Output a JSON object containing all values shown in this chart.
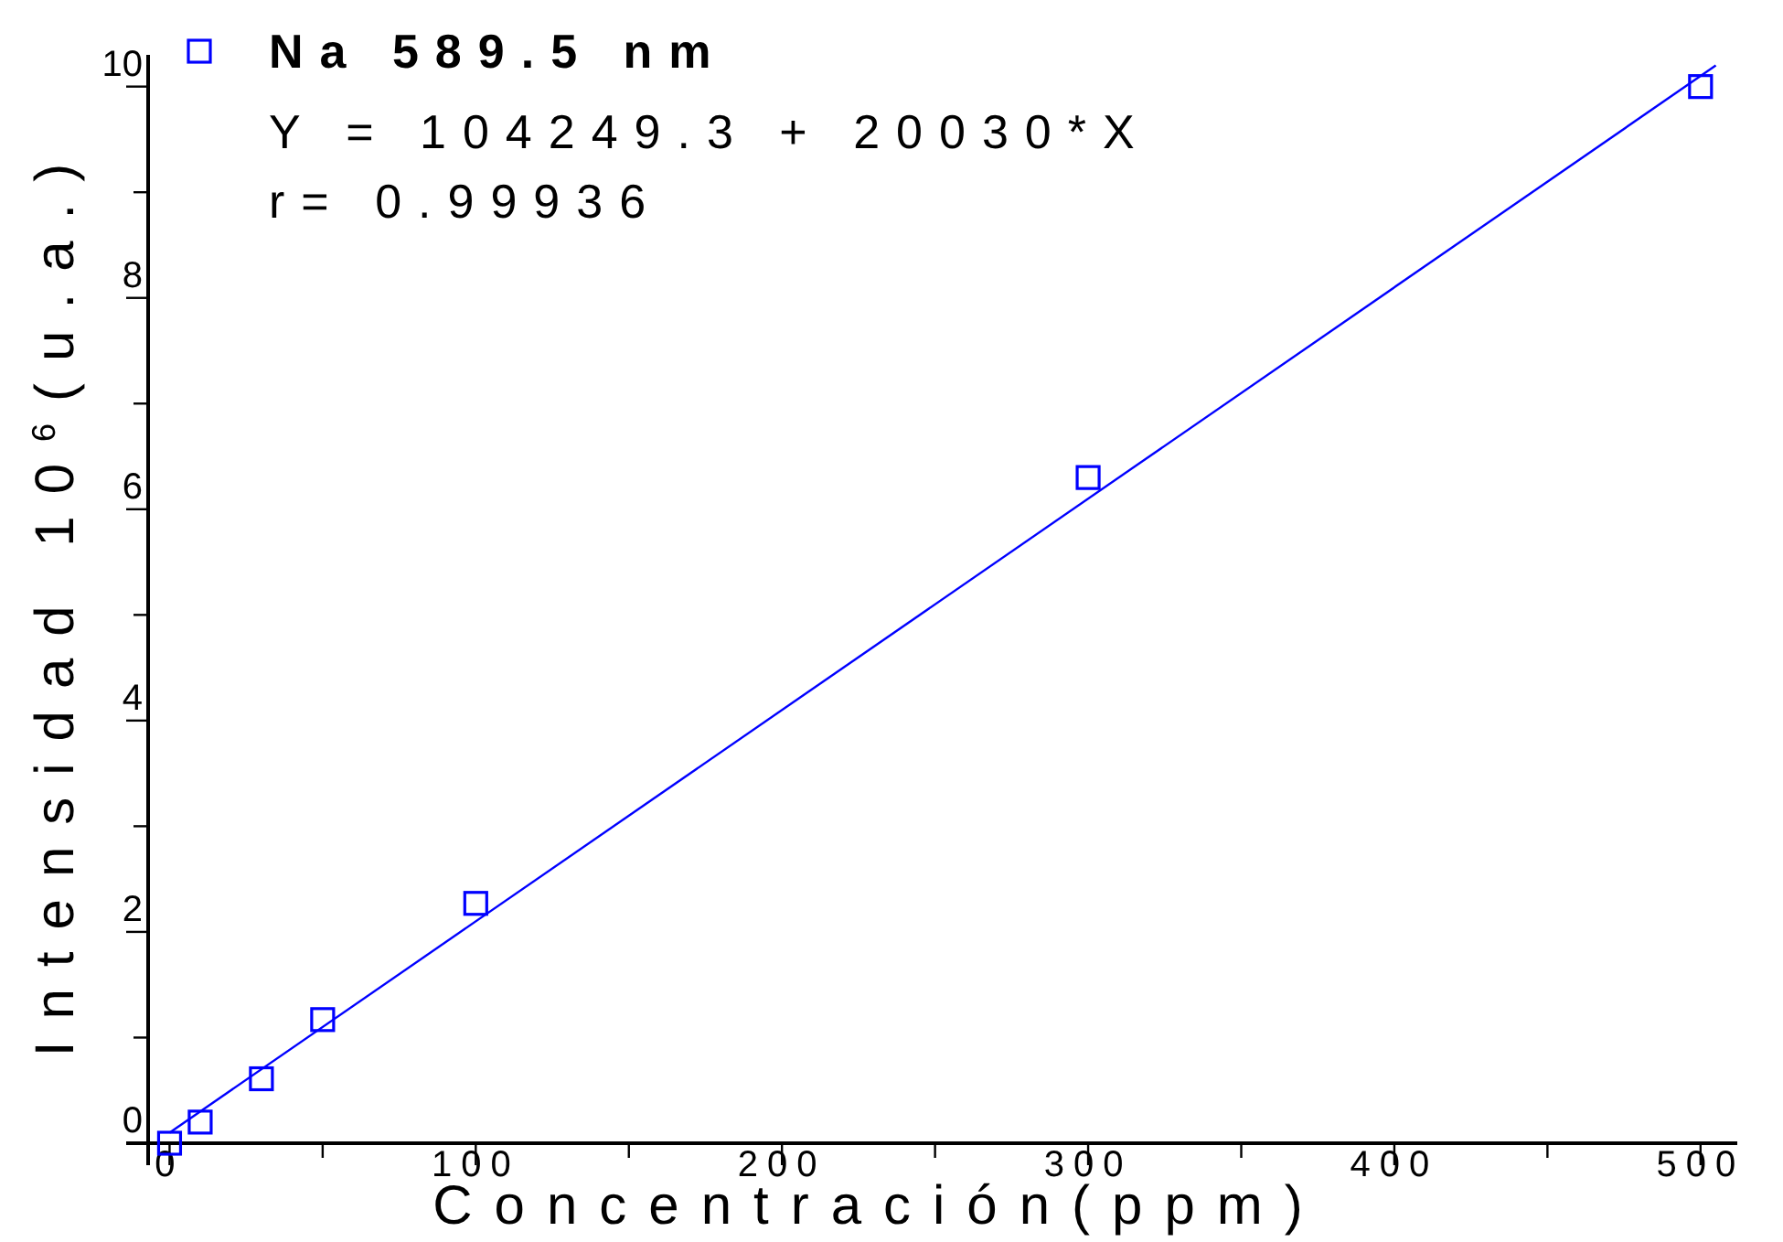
{
  "chart_data": {
    "type": "scatter",
    "xlabel": "Concentración(ppm)",
    "ylabel": "Intensidad 10$^{6}$(u.a.)",
    "xlim": [
      -7,
      512
    ],
    "ylim": [
      0,
      10.3
    ],
    "xticks": [
      0,
      {
        "value": 50,
        "label": null
      },
      100,
      {
        "value": 150,
        "label": null
      },
      200,
      {
        "value": 250,
        "label": null
      },
      300,
      {
        "value": 350,
        "label": null
      },
      400,
      {
        "value": 450,
        "label": null
      },
      500
    ],
    "yticks": [
      0,
      {
        "value": 1,
        "label": null
      },
      2,
      {
        "value": 3,
        "label": null
      },
      4,
      {
        "value": 5,
        "label": null
      },
      6,
      {
        "value": 7,
        "label": null
      },
      8,
      {
        "value": 9,
        "label": null
      },
      10
    ],
    "grid": false,
    "legend": "top left",
    "marker": "square",
    "annotations": [
      "Y = 104249.3 + 20030*X",
      "r= 0.99936"
    ],
    "series": [
      {
        "name": "Na 589.5 nm",
        "color": "#0000ff",
        "x": [
          0,
          10,
          30,
          50,
          100,
          300,
          500
        ],
        "values": [
          0.0,
          0.2,
          0.61,
          1.17,
          2.27,
          6.3,
          10.0
        ]
      },
      {
        "type": "line",
        "color": "#0000ff",
        "x": [
          0,
          505
        ],
        "values": [
          0.1,
          10.2
        ],
        "marker": "none",
        "line_style": "solid"
      }
    ]
  }
}
